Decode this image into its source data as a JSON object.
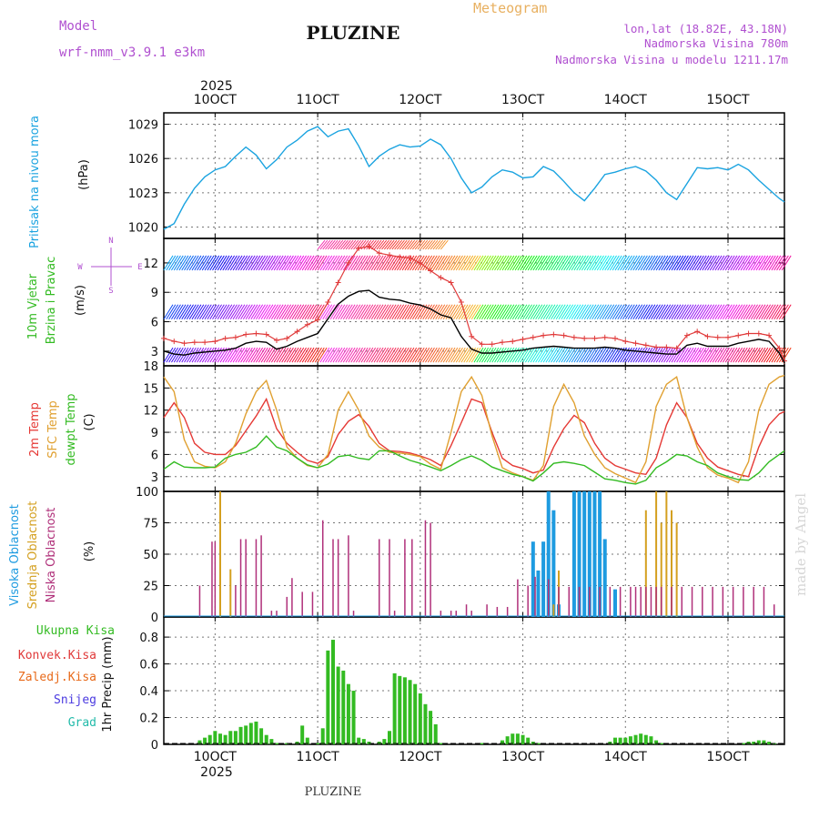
{
  "header": {
    "meteogram_label": "Meteogram",
    "model_label": "Model",
    "model_name": "wrf-nmm_v3.9.1  e3km",
    "station": "PLUZINE",
    "lonlat": "lon,lat (18.82E, 43.18N)",
    "elevation": "Nadmorska Visina 780m",
    "model_elevation": "Nadmorska Visina u modelu 1211.17m",
    "footer_station": "PLUZINE",
    "watermark": "made by Angel"
  },
  "time_axis": {
    "year_top": "2025",
    "year_bottom": "2025",
    "ticks": [
      "10OCT",
      "11OCT",
      "12OCT",
      "13OCT",
      "14OCT",
      "15OCT"
    ],
    "tick_days": [
      1,
      2,
      3,
      4,
      5,
      6
    ],
    "start_day": 0.5,
    "end_day": 6.55
  },
  "colors": {
    "pressure": "#1aa3e0",
    "wind_max": "#e03a3a",
    "wind_mean": "#000000",
    "temp_2m": "#e53935",
    "temp_sfc": "#e0a030",
    "dewpoint": "#33bb22",
    "cloud_high": "#1e9be0",
    "cloud_mid": "#d4a020",
    "cloud_low": "#b0307a",
    "precip": "#33bb22",
    "grid": "#777777"
  },
  "chart_data": [
    {
      "type": "line",
      "title": "Pritisak na nivou mora",
      "ylabel": "(hPa)",
      "ylim": [
        1019,
        1030
      ],
      "yticks": [
        1020,
        1023,
        1026,
        1029
      ],
      "x": [
        0.5,
        0.6,
        0.7,
        0.8,
        0.9,
        1.0,
        1.1,
        1.2,
        1.3,
        1.4,
        1.5,
        1.6,
        1.7,
        1.8,
        1.9,
        2.0,
        2.1,
        2.2,
        2.3,
        2.4,
        2.5,
        2.6,
        2.7,
        2.8,
        2.9,
        3.0,
        3.1,
        3.2,
        3.3,
        3.4,
        3.5,
        3.6,
        3.7,
        3.8,
        3.9,
        4.0,
        4.1,
        4.2,
        4.3,
        4.4,
        4.5,
        4.6,
        4.7,
        4.8,
        4.9,
        5.0,
        5.1,
        5.2,
        5.3,
        5.4,
        5.5,
        5.6,
        5.7,
        5.8,
        5.9,
        6.0,
        6.1,
        6.2,
        6.3,
        6.4,
        6.5,
        6.55
      ],
      "values": [
        1019.8,
        1020.3,
        1022.0,
        1023.4,
        1024.4,
        1025.0,
        1025.3,
        1026.2,
        1027.0,
        1026.3,
        1025.1,
        1025.9,
        1027.0,
        1027.6,
        1028.4,
        1028.8,
        1027.9,
        1028.4,
        1028.6,
        1027.1,
        1025.3,
        1026.2,
        1026.8,
        1027.2,
        1027.0,
        1027.1,
        1027.7,
        1027.2,
        1026.0,
        1024.3,
        1023.0,
        1023.5,
        1024.4,
        1025.0,
        1024.8,
        1024.3,
        1024.4,
        1025.3,
        1024.9,
        1024.0,
        1023.0,
        1022.3,
        1023.4,
        1024.6,
        1024.8,
        1025.1,
        1025.3,
        1024.9,
        1024.1,
        1023.0,
        1022.4,
        1023.8,
        1025.2,
        1025.1,
        1025.2,
        1025.0,
        1025.5,
        1025.0,
        1024.1,
        1023.3,
        1022.5,
        1022.2
      ]
    },
    {
      "type": "line",
      "title": "10m Vjetar Brzina i Pravac",
      "ylabel": "(m/s)",
      "ylim": [
        1.5,
        14.5
      ],
      "yticks": [
        3,
        6,
        9,
        12
      ],
      "legend_compass": [
        "N",
        "W",
        "E",
        "S"
      ],
      "x": [
        0.5,
        0.6,
        0.7,
        0.8,
        0.9,
        1.0,
        1.1,
        1.2,
        1.3,
        1.4,
        1.5,
        1.6,
        1.7,
        1.8,
        1.9,
        2.0,
        2.1,
        2.2,
        2.3,
        2.4,
        2.5,
        2.6,
        2.7,
        2.8,
        2.9,
        3.0,
        3.1,
        3.2,
        3.3,
        3.4,
        3.5,
        3.6,
        3.7,
        3.8,
        3.9,
        4.0,
        4.1,
        4.2,
        4.3,
        4.4,
        4.5,
        4.6,
        4.7,
        4.8,
        4.9,
        5.0,
        5.1,
        5.2,
        5.3,
        5.4,
        5.5,
        5.6,
        5.7,
        5.8,
        5.9,
        6.0,
        6.1,
        6.2,
        6.3,
        6.4,
        6.5,
        6.55
      ],
      "series": [
        {
          "name": "max gust",
          "values": [
            4.3,
            4.0,
            3.8,
            3.9,
            3.9,
            4.0,
            4.3,
            4.4,
            4.7,
            4.8,
            4.7,
            4.1,
            4.3,
            5.0,
            5.7,
            6.2,
            8.0,
            10.0,
            12.0,
            13.5,
            13.7,
            13.0,
            12.8,
            12.6,
            12.5,
            12.0,
            11.2,
            10.5,
            10.0,
            8.0,
            4.5,
            3.7,
            3.7,
            3.9,
            4.0,
            4.2,
            4.4,
            4.6,
            4.7,
            4.6,
            4.4,
            4.3,
            4.3,
            4.4,
            4.3,
            4.0,
            3.8,
            3.6,
            3.4,
            3.4,
            3.3,
            4.6,
            5.0,
            4.5,
            4.4,
            4.4,
            4.6,
            4.8,
            4.8,
            4.6,
            3.3,
            2.0
          ]
        },
        {
          "name": "mean speed",
          "values": [
            3.0,
            2.7,
            2.6,
            2.8,
            2.9,
            3.0,
            3.1,
            3.3,
            3.8,
            4.0,
            3.9,
            3.2,
            3.5,
            4.0,
            4.4,
            4.8,
            6.3,
            7.8,
            8.6,
            9.1,
            9.2,
            8.5,
            8.3,
            8.2,
            7.9,
            7.7,
            7.3,
            6.7,
            6.4,
            4.5,
            3.2,
            2.8,
            2.8,
            2.9,
            3.0,
            3.1,
            3.3,
            3.4,
            3.5,
            3.4,
            3.3,
            3.3,
            3.3,
            3.4,
            3.3,
            3.1,
            3.0,
            2.9,
            2.8,
            2.7,
            2.7,
            3.6,
            3.8,
            3.5,
            3.5,
            3.5,
            3.8,
            4.0,
            4.2,
            4.0,
            2.8,
            1.8
          ]
        }
      ]
    },
    {
      "type": "line",
      "title": "2m Temp / SFC Temp / dewpt Temp",
      "ylabel": "(C)",
      "ylim": [
        1,
        18
      ],
      "yticks": [
        3,
        6,
        9,
        12,
        15,
        18
      ],
      "x": [
        0.5,
        0.6,
        0.7,
        0.8,
        0.9,
        1.0,
        1.1,
        1.2,
        1.3,
        1.4,
        1.5,
        1.6,
        1.7,
        1.8,
        1.9,
        2.0,
        2.1,
        2.2,
        2.3,
        2.4,
        2.5,
        2.6,
        2.7,
        2.8,
        2.9,
        3.0,
        3.1,
        3.2,
        3.3,
        3.4,
        3.5,
        3.6,
        3.7,
        3.8,
        3.9,
        4.0,
        4.1,
        4.2,
        4.3,
        4.4,
        4.5,
        4.6,
        4.7,
        4.8,
        4.9,
        5.0,
        5.1,
        5.2,
        5.3,
        5.4,
        5.5,
        5.6,
        5.7,
        5.8,
        5.9,
        6.0,
        6.1,
        6.2,
        6.3,
        6.4,
        6.5,
        6.55
      ],
      "series": [
        {
          "name": "2m Temp",
          "values": [
            11.0,
            13.0,
            11.0,
            7.5,
            6.3,
            6.0,
            6.0,
            7.2,
            9.2,
            11.2,
            13.5,
            9.5,
            7.5,
            6.3,
            5.2,
            4.8,
            5.7,
            8.7,
            10.5,
            11.4,
            9.8,
            7.5,
            6.5,
            6.4,
            6.2,
            5.8,
            5.3,
            4.5,
            7.2,
            10.3,
            13.5,
            13.0,
            9.0,
            5.5,
            4.5,
            4.1,
            3.5,
            3.9,
            7.0,
            9.5,
            11.3,
            10.3,
            7.5,
            5.5,
            4.5,
            4.0,
            3.5,
            3.3,
            5.5,
            10.0,
            13.0,
            11.0,
            7.5,
            5.5,
            4.3,
            3.8,
            3.3,
            3.0,
            7.0,
            10.0,
            11.5,
            11.8
          ]
        },
        {
          "name": "SFC Temp",
          "values": [
            16.5,
            14.5,
            8.0,
            5.0,
            4.4,
            4.2,
            5.0,
            7.5,
            11.5,
            14.5,
            16.0,
            12.0,
            7.0,
            5.5,
            4.5,
            4.2,
            6.0,
            12.0,
            14.5,
            12.0,
            8.5,
            7.0,
            6.3,
            6.2,
            6.0,
            5.7,
            4.7,
            4.0,
            9.0,
            14.5,
            16.5,
            14.0,
            8.5,
            4.2,
            3.5,
            3.0,
            2.5,
            4.5,
            12.5,
            15.5,
            13.0,
            8.5,
            6.0,
            4.2,
            3.4,
            2.8,
            2.2,
            5.0,
            12.5,
            15.5,
            16.5,
            11.0,
            7.0,
            4.2,
            3.2,
            2.8,
            2.2,
            5.0,
            12.0,
            15.5,
            16.5,
            16.7
          ]
        },
        {
          "name": "dewpt Temp",
          "values": [
            4.0,
            5.0,
            4.3,
            4.2,
            4.2,
            4.3,
            5.5,
            6.0,
            6.3,
            7.0,
            8.5,
            7.0,
            6.5,
            5.5,
            4.6,
            4.2,
            4.7,
            5.7,
            5.9,
            5.5,
            5.3,
            6.5,
            6.5,
            5.8,
            5.2,
            4.8,
            4.3,
            3.8,
            4.5,
            5.3,
            5.8,
            5.2,
            4.3,
            3.8,
            3.3,
            3.0,
            2.4,
            3.5,
            4.8,
            5.0,
            4.8,
            4.5,
            3.6,
            2.7,
            2.5,
            2.2,
            2.0,
            2.5,
            4.2,
            5.0,
            6.0,
            5.8,
            5.0,
            4.5,
            3.5,
            3.0,
            2.6,
            2.5,
            3.5,
            5.0,
            6.0,
            6.5
          ]
        }
      ]
    },
    {
      "type": "bar",
      "title": "Visoka Oblacnost / Srednja Oblacnost / Niska Oblacnost",
      "ylabel": "(%)",
      "ylim": [
        0,
        100
      ],
      "yticks": [
        0,
        25,
        50,
        75,
        100
      ],
      "series": [
        {
          "name": "Visoka Oblacnost",
          "x": [
            4.1,
            4.15,
            4.2,
            4.25,
            4.3,
            4.35,
            4.5,
            4.55,
            4.6,
            4.65,
            4.7,
            4.75,
            4.8,
            4.9
          ],
          "values": [
            60,
            37,
            60,
            100,
            85,
            10,
            100,
            100,
            100,
            100,
            100,
            100,
            62,
            22
          ]
        },
        {
          "name": "Srednja Oblacnost",
          "x": [
            1.05,
            1.15,
            4.3,
            4.35,
            5.2,
            5.3,
            5.35,
            5.4,
            5.45,
            5.5
          ],
          "values": [
            100,
            38,
            10,
            37,
            85,
            100,
            75,
            100,
            85,
            75
          ]
        },
        {
          "name": "Niska Oblacnost",
          "x": [
            0.85,
            0.97,
            1.0,
            1.2,
            1.25,
            1.3,
            1.4,
            1.45,
            1.55,
            1.6,
            1.7,
            1.75,
            1.85,
            1.95,
            2.05,
            2.15,
            2.2,
            2.3,
            2.35,
            2.6,
            2.7,
            2.75,
            2.85,
            2.92,
            3.05,
            3.1,
            3.2,
            3.3,
            3.35,
            3.45,
            3.5,
            3.65,
            3.75,
            3.85,
            3.95,
            4.05,
            4.12,
            4.25,
            4.35,
            4.45,
            4.55,
            4.65,
            4.75,
            4.85,
            4.95,
            5.05,
            5.1,
            5.15,
            5.2,
            5.25,
            5.3,
            5.35,
            5.45,
            5.55,
            5.65,
            5.75,
            5.85,
            5.95,
            6.05,
            6.15,
            6.25,
            6.35,
            6.45
          ],
          "values": [
            25,
            60,
            60,
            25,
            62,
            62,
            62,
            65,
            5,
            5,
            16,
            31,
            20,
            20,
            77,
            62,
            62,
            65,
            5,
            62,
            62,
            5,
            62,
            62,
            77,
            75,
            5,
            5,
            5,
            10,
            5,
            10,
            8,
            8,
            30,
            25,
            32,
            30,
            24,
            24,
            24,
            24,
            24,
            24,
            24,
            24,
            24,
            24,
            24,
            24,
            24,
            24,
            24,
            24,
            24,
            24,
            24,
            24,
            24,
            24,
            24,
            24,
            10
          ]
        }
      ]
    },
    {
      "type": "bar",
      "title": "1hr Precip",
      "ylabel": "1hr Precip (mm)",
      "ylim": [
        0,
        0.95
      ],
      "yticks": [
        0,
        0.2,
        0.4,
        0.6,
        0.8
      ],
      "legend": [
        "Ukupna Kisa",
        "Konvek.Kisa",
        "Zaledj.Kisa",
        "Snijeg",
        "Grad"
      ],
      "legend_colors": [
        "#33bb22",
        "#e03a3a",
        "#e86a1a",
        "#4a3ae0",
        "#22bbaa"
      ],
      "x": [
        0.85,
        0.9,
        0.95,
        1.0,
        1.05,
        1.1,
        1.15,
        1.2,
        1.25,
        1.3,
        1.35,
        1.4,
        1.45,
        1.5,
        1.55,
        1.6,
        1.65,
        1.7,
        1.75,
        1.8,
        1.85,
        1.9,
        1.95,
        2.0,
        2.05,
        2.1,
        2.15,
        2.2,
        2.25,
        2.3,
        2.35,
        2.4,
        2.45,
        2.5,
        2.55,
        2.6,
        2.65,
        2.7,
        2.75,
        2.8,
        2.85,
        2.9,
        2.95,
        3.0,
        3.05,
        3.1,
        3.15,
        3.2,
        3.25,
        3.3,
        3.35,
        3.4,
        3.45,
        3.5,
        3.55,
        3.6,
        3.65,
        3.7,
        3.75,
        3.8,
        3.85,
        3.9,
        3.95,
        4.0,
        4.05,
        4.1,
        4.15,
        4.2,
        4.25,
        4.3,
        4.35,
        4.4,
        4.45,
        4.5,
        4.55,
        4.6,
        4.65,
        4.7,
        4.75,
        4.8,
        4.85,
        4.9,
        4.95,
        5.0,
        5.05,
        5.1,
        5.15,
        5.2,
        5.25,
        5.3,
        5.35,
        5.4,
        5.45,
        5.5,
        5.55,
        5.6,
        5.65,
        5.7,
        5.75,
        5.8,
        5.85,
        5.9,
        5.95,
        6.0,
        6.05,
        6.1,
        6.15,
        6.2,
        6.25,
        6.3,
        6.35,
        6.4,
        6.45
      ],
      "values": [
        0.03,
        0.05,
        0.07,
        0.1,
        0.08,
        0.07,
        0.1,
        0.1,
        0.13,
        0.14,
        0.16,
        0.17,
        0.12,
        0.07,
        0.04,
        0.01,
        0.0,
        0.01,
        0.0,
        0.02,
        0.14,
        0.05,
        0.0,
        0.01,
        0.12,
        0.7,
        0.78,
        0.58,
        0.55,
        0.45,
        0.4,
        0.05,
        0.04,
        0.02,
        0.0,
        0.02,
        0.04,
        0.1,
        0.53,
        0.51,
        0.5,
        0.48,
        0.45,
        0.38,
        0.3,
        0.25,
        0.15,
        0.01,
        0.0,
        0.0,
        0.0,
        0.0,
        0.0,
        0.0,
        0.0,
        0.01,
        0.0,
        0.0,
        0.0,
        0.03,
        0.06,
        0.08,
        0.08,
        0.07,
        0.05,
        0.02,
        0.01,
        0.0,
        0.0,
        0.0,
        0.0,
        0.0,
        0.0,
        0.0,
        0.0,
        0.0,
        0.0,
        0.0,
        0.0,
        0.0,
        0.02,
        0.05,
        0.05,
        0.05,
        0.06,
        0.07,
        0.08,
        0.07,
        0.06,
        0.03,
        0.01,
        0.0,
        0.0,
        0.0,
        0.0,
        0.0,
        0.0,
        0.0,
        0.0,
        0.0,
        0.0,
        0.0,
        0.0,
        0.0,
        0.0,
        0.0,
        0.01,
        0.02,
        0.02,
        0.03,
        0.03,
        0.02,
        0.01
      ]
    }
  ],
  "panel_titles": {
    "pressure": "Pritisak na nivou mora",
    "wind1": "10m Vjetar",
    "wind2": "Brzina i Pravac",
    "temp_2m": "2m Temp",
    "temp_sfc": "SFC Temp",
    "temp_dew1": "dewpt Temp",
    "cloud_high": "Visoka Oblacnost",
    "cloud_mid": "Srednja Oblacnost",
    "cloud_low": "Niska Oblacnost",
    "precip_total": "Ukupna  Kisa",
    "precip_conv": "Konvek.Kisa",
    "precip_frz": "Zaledj.Kisa",
    "precip_snow": "Snijeg",
    "precip_hail": "Grad"
  },
  "units": {
    "pressure": "(hPa)",
    "wind": "(m/s)",
    "temp": "(C)",
    "cloud": "(%)",
    "precip": "1hr Precip (mm)"
  }
}
